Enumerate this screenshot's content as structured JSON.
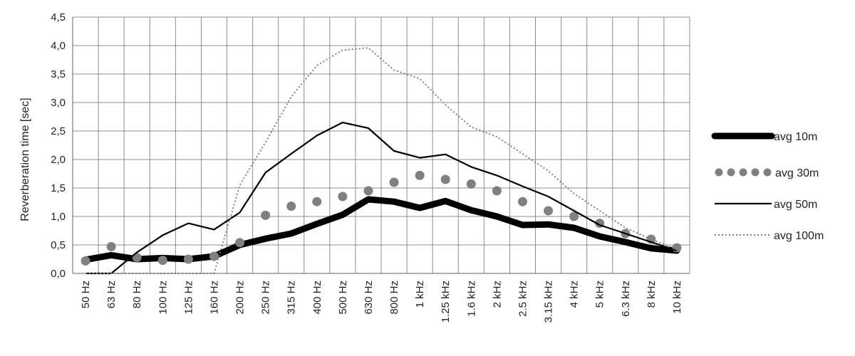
{
  "chart_data": {
    "type": "line",
    "title": "",
    "xlabel": "",
    "ylabel": "Reverberation time [sec]",
    "ylim": [
      0,
      4.5
    ],
    "yticks": [
      "0,0",
      "0,5",
      "1,0",
      "1,5",
      "2,0",
      "2,5",
      "3,0",
      "3,5",
      "4,0",
      "4,5"
    ],
    "grid": true,
    "legend_position": "right",
    "categories": [
      "50 Hz",
      "63 Hz",
      "80 Hz",
      "100 Hz",
      "125 Hz",
      "160 Hz",
      "200 Hz",
      "250 Hz",
      "315 Hz",
      "400 Hz",
      "500 Hz",
      "630 Hz",
      "800 Hz",
      "1 kHz",
      "1.25 kHz",
      "1.6 kHz",
      "2 kHz",
      "2.5 kHz",
      "3.15 kHz",
      "4 kHz",
      "5 kHz",
      "6.3 kHz",
      "8 kHz",
      "10 kHz"
    ],
    "series": [
      {
        "name": "avg 10m",
        "color": "#000000",
        "style": "thick-solid",
        "values": [
          0.24,
          0.32,
          0.25,
          0.27,
          0.25,
          0.3,
          0.5,
          0.61,
          0.7,
          0.87,
          1.03,
          1.3,
          1.26,
          1.15,
          1.27,
          1.11,
          1.0,
          0.85,
          0.86,
          0.8,
          0.65,
          0.55,
          0.44,
          0.4
        ]
      },
      {
        "name": "avg 30m",
        "color": "#808080",
        "style": "dotted-large",
        "values": [
          0.22,
          0.47,
          0.28,
          0.23,
          0.25,
          0.3,
          0.54,
          1.02,
          1.18,
          1.26,
          1.35,
          1.45,
          1.6,
          1.72,
          1.65,
          1.57,
          1.45,
          1.26,
          1.1,
          1.0,
          0.88,
          0.7,
          0.6,
          0.45
        ]
      },
      {
        "name": "avg 50m",
        "color": "#000000",
        "style": "thin-solid",
        "values": [
          0.0,
          0.0,
          0.37,
          0.67,
          0.88,
          0.77,
          1.07,
          1.77,
          2.1,
          2.42,
          2.65,
          2.55,
          2.15,
          2.03,
          2.09,
          1.87,
          1.72,
          1.53,
          1.35,
          1.1,
          0.85,
          0.7,
          0.55,
          0.4
        ]
      },
      {
        "name": "avg 100m",
        "color": "#808080",
        "style": "dotted-small",
        "values": [
          0.0,
          0.0,
          0.0,
          0.0,
          0.0,
          0.0,
          1.55,
          2.3,
          3.1,
          3.65,
          3.92,
          3.96,
          3.57,
          3.42,
          2.96,
          2.57,
          2.4,
          2.1,
          1.8,
          1.4,
          1.1,
          0.8,
          0.6,
          0.42
        ]
      }
    ]
  }
}
